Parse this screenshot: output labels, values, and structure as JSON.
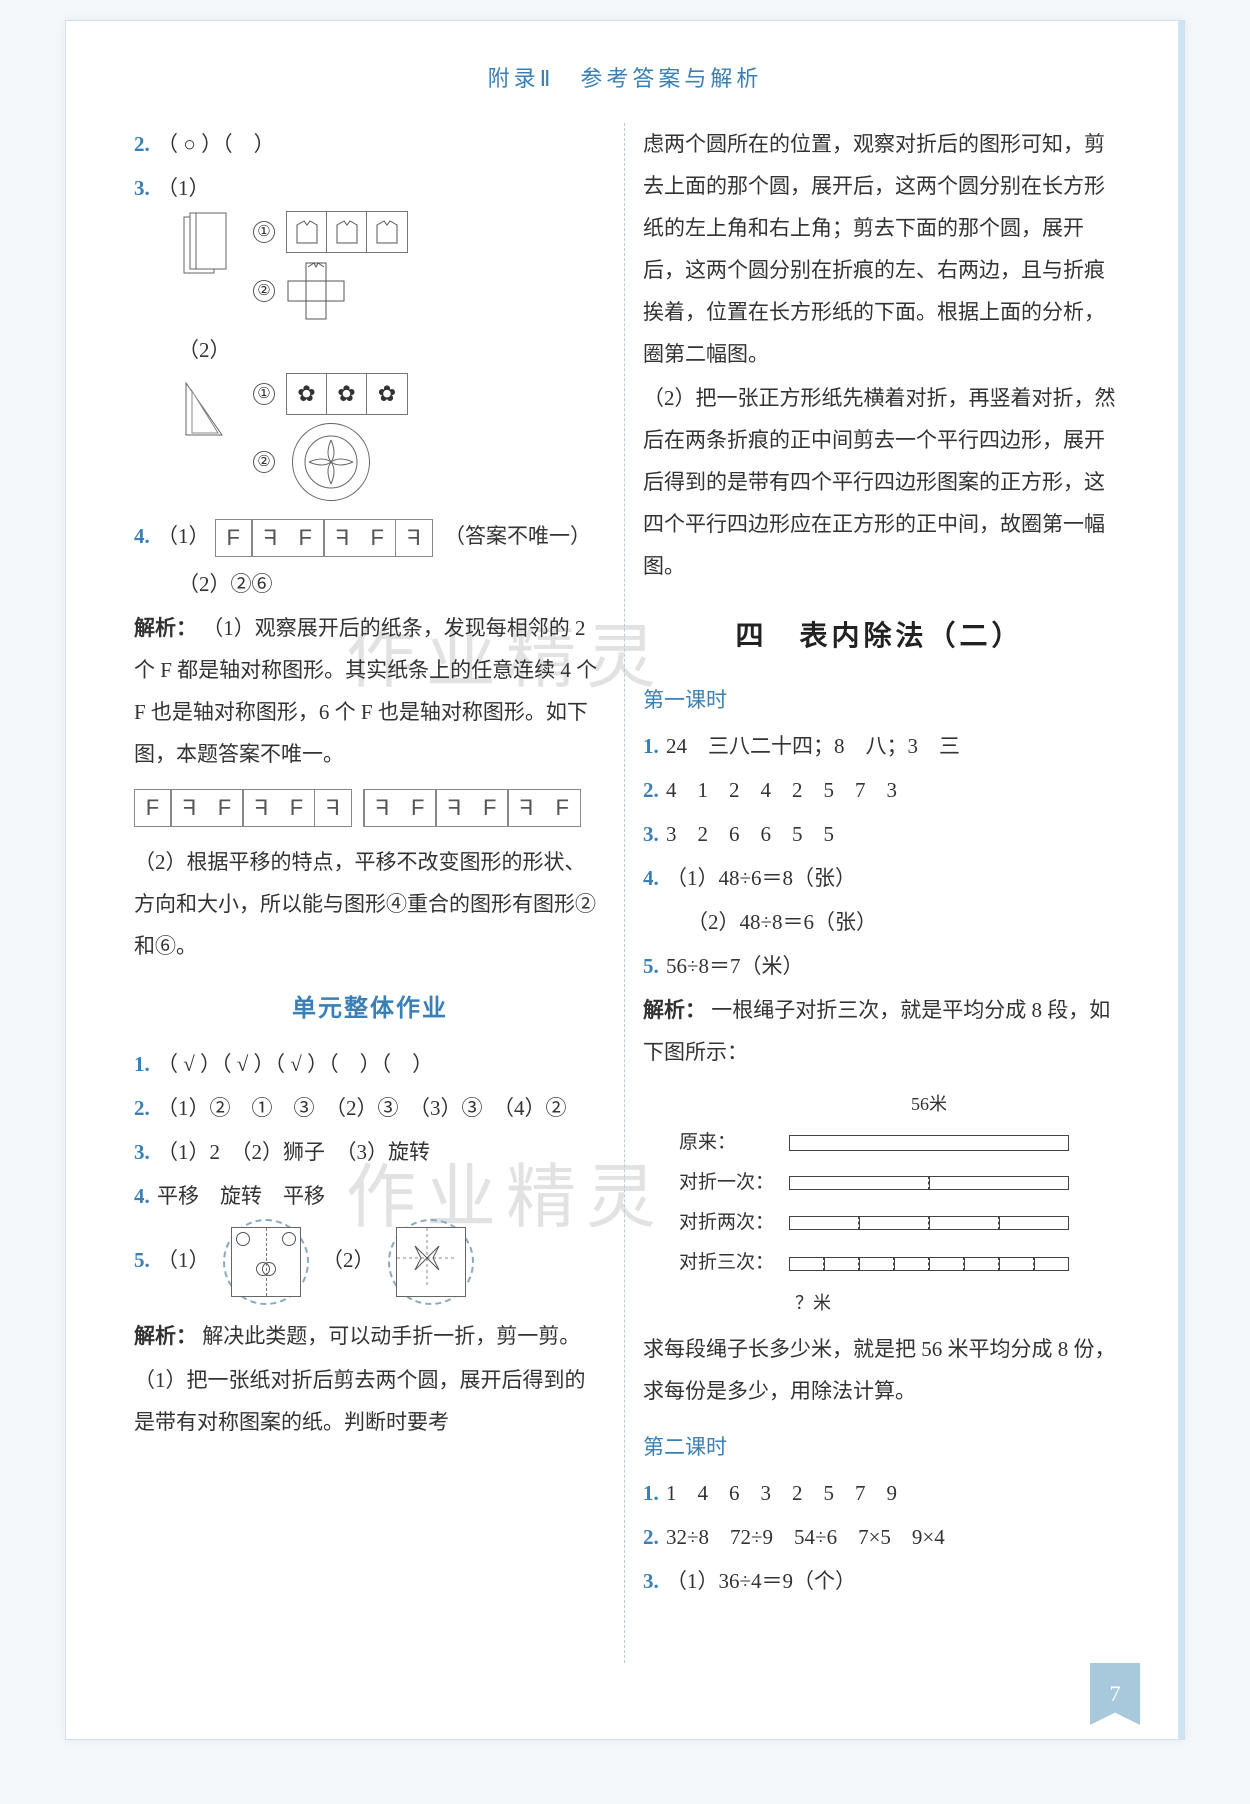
{
  "header": "附录Ⅱ　参考答案与解析",
  "page_number": "7",
  "watermark": "作业精灵",
  "colors": {
    "accent": "#3a7fb5",
    "text": "#333333",
    "border": "#d0e0ec",
    "page_tab": "#a8c8dc",
    "dash": "#b8c8d8"
  },
  "left": {
    "q2": "（ ○ ）（　）",
    "q3": {
      "label1": "（1）",
      "label2": "（2）",
      "circ1": "①",
      "circ2": "②"
    },
    "q4": {
      "p1_prefix": "（1）",
      "p1_suffix": "（答案不唯一）",
      "f_cells": [
        "F",
        "F",
        "F",
        "F",
        "F",
        "F"
      ],
      "f_flip": [
        false,
        true,
        false,
        true,
        false,
        true
      ],
      "p2": "（2）②⑥",
      "analysis_label": "解析：",
      "analysis1": "（1）观察展开后的纸条，发现每相邻的 2 个 F 都是轴对称图形。其实纸条上的任意连续 4 个 F 也是轴对称图形，6 个 F 也是轴对称图形。如下图，本题答案不唯一。",
      "row_a": [
        "F",
        "F",
        "F",
        "F",
        "F",
        "F"
      ],
      "row_a_flip": [
        false,
        true,
        false,
        true,
        false,
        true
      ],
      "row_b": [
        "F",
        "F",
        "F",
        "F",
        "F",
        "F"
      ],
      "row_b_flip": [
        true,
        false,
        true,
        false,
        true,
        false
      ],
      "analysis2": "（2）根据平移的特点，平移不改变图形的形状、方向和大小，所以能与图形④重合的图形有图形②和⑥。"
    },
    "unit_title": "单元整体作业",
    "u1": "（ √ ）（ √ ）（ √ ）（　）（　）",
    "u2": "（1）②　①　③　（2）③　（3）③　（4）②",
    "u3": "（1）2　（2）狮子　（3）旋转",
    "u4": "平移　旋转　平移",
    "u5": {
      "a": "（1）",
      "b": "（2）"
    },
    "u_analysis_label": "解析：",
    "u_analysis_intro": "解决此类题，可以动手折一折，剪一剪。",
    "u_analysis_1": "（1）把一张纸对折后剪去两个圆，展开后得到的是带有对称图案的纸。判断时要考"
  },
  "right": {
    "cont1": "虑两个圆所在的位置，观察对折后的图形可知，剪去上面的那个圆，展开后，这两个圆分别在长方形纸的左上角和右上角；剪去下面的那个圆，展开后，这两个圆分别在折痕的左、右两边，且与折痕挨着，位置在长方形纸的下面。根据上面的分析，圈第二幅图。",
    "cont2": "（2）把一张正方形纸先横着对折，再竖着对折，然后在两条折痕的正中间剪去一个平行四边形，展开后得到的是带有四个平行四边形图案的正方形，这四个平行四边形应在正方形的正中间，故圈第一幅图。",
    "big_title": "四　表内除法（二）",
    "lesson1_title": "第一课时",
    "l1_1": "24　三八二十四；8　八；3　三",
    "l1_2": "4　1　2　4　2　5　7　3",
    "l1_3": "3　2　6　6　5　5",
    "l1_4a": "（1）48÷6＝8（张）",
    "l1_4b": "（2）48÷8＝6（张）",
    "l1_5": "56÷8＝7（米）",
    "l1_analysis_label": "解析：",
    "l1_analysis": "一根绳子对折三次，就是平均分成 8 段，如下图所示：",
    "fold": {
      "total_label": "56米",
      "rows": [
        {
          "label": "原来：",
          "segs": 1
        },
        {
          "label": "对折一次：",
          "segs": 2
        },
        {
          "label": "对折两次：",
          "segs": 4
        },
        {
          "label": "对折三次：",
          "segs": 8
        }
      ],
      "q_label": "？米"
    },
    "l1_conclusion": "求每段绳子长多少米，就是把 56 米平均分成 8 份，求每份是多少，用除法计算。",
    "lesson2_title": "第二课时",
    "l2_1": "1　4　6　3　2　5　7　9",
    "l2_2": "32÷8　72÷9　54÷6　7×5　9×4",
    "l2_3": "（1）36÷4＝9（个）"
  }
}
